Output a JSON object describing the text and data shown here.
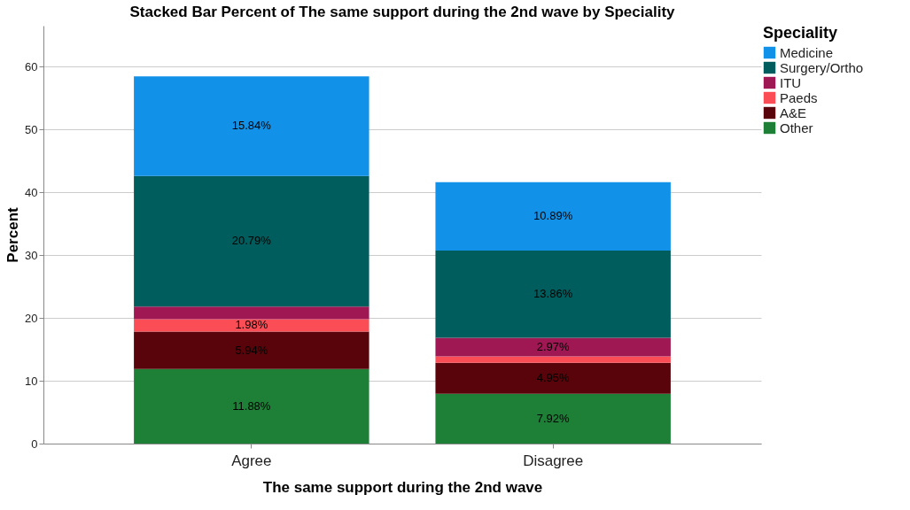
{
  "chart_data": {
    "type": "bar",
    "title": "Stacked Bar Percent of The same support during the 2nd wave by Speciality",
    "xlabel": "The same support during the 2nd wave",
    "ylabel": "Percent",
    "legend_title": "Speciality",
    "categories": [
      "Agree",
      "Disagree"
    ],
    "series": [
      {
        "name": "Other",
        "color": "#1e7f37",
        "values": [
          11.88,
          7.92
        ],
        "value_labels": [
          "11.88%",
          "7.92%"
        ]
      },
      {
        "name": "A&E",
        "color": "#58040a",
        "values": [
          5.94,
          4.95
        ],
        "value_labels": [
          "5.94%",
          "4.95%"
        ]
      },
      {
        "name": "Paeds",
        "color": "#fa4d56",
        "values": [
          1.98,
          1.0
        ],
        "value_labels": [
          "1.98%",
          null
        ]
      },
      {
        "name": "ITU",
        "color": "#9f1853",
        "values": [
          2.0,
          2.97
        ],
        "value_labels": [
          null,
          "2.97%"
        ]
      },
      {
        "name": "Surgery/Ortho",
        "color": "#005d5d",
        "values": [
          20.79,
          13.86
        ],
        "value_labels": [
          "20.79%",
          "13.86%"
        ]
      },
      {
        "name": "Medicine",
        "color": "#1192e8",
        "values": [
          15.84,
          10.89
        ],
        "value_labels": [
          "15.84%",
          "10.89%"
        ]
      }
    ],
    "stacked": true,
    "ylim": [
      0,
      66.5
    ],
    "yticks": [
      0,
      10,
      20,
      30,
      40,
      50,
      60
    ],
    "grid": "y",
    "legend": "top right"
  }
}
